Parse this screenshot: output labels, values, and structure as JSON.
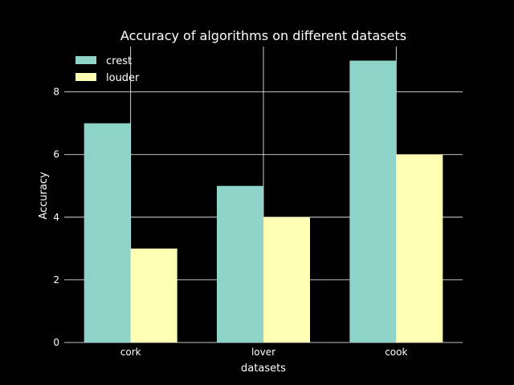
{
  "chart_data": {
    "type": "bar",
    "title": "Accuracy of algorithms on different datasets",
    "xlabel": "datasets",
    "ylabel": "Accuracy",
    "categories": [
      "cork",
      "lover",
      "cook"
    ],
    "series": [
      {
        "name": "crest",
        "values": [
          7,
          5,
          9
        ],
        "color": "#8dd3c7"
      },
      {
        "name": "louder",
        "values": [
          3,
          4,
          6
        ],
        "color": "#ffffb3"
      }
    ],
    "ylim": [
      0,
      9.45
    ],
    "yticks": [
      0,
      2,
      4,
      6,
      8
    ],
    "grid": true,
    "legend": "top-left",
    "background": "#000000",
    "foreground": "#ffffff"
  }
}
